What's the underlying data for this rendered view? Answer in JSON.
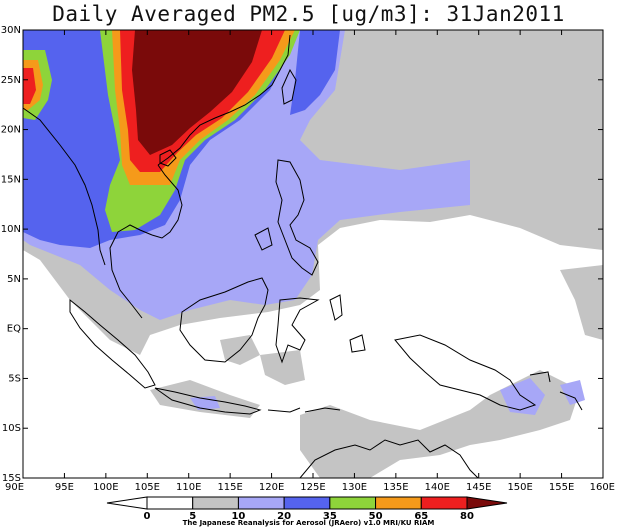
{
  "title": "Daily Averaged PM2.5 [ug/m3]: 31Jan2011",
  "lat_labels": [
    "30N",
    "25N",
    "20N",
    "15N",
    "10N",
    "5N",
    "EQ",
    "5S",
    "10S",
    "15S"
  ],
  "lon_labels": [
    "90E",
    "95E",
    "100E",
    "105E",
    "110E",
    "115E",
    "120E",
    "125E",
    "130E",
    "135E",
    "140E",
    "145E",
    "150E",
    "155E",
    "160E"
  ],
  "colorbar": {
    "levels": [
      "0",
      "5",
      "10",
      "20",
      "35",
      "50",
      "65",
      "80"
    ],
    "colors": [
      "#ffffff",
      "#ffffff",
      "#c4c4c4",
      "#a7a7f7",
      "#5563ee",
      "#8ed43a",
      "#f59a1a",
      "#ee1f1f",
      "#7a0a0a"
    ]
  },
  "credit": "The Japanese Reanalysis for Aerosol (JRAero) v1.0 MRI/KU RIAM"
}
